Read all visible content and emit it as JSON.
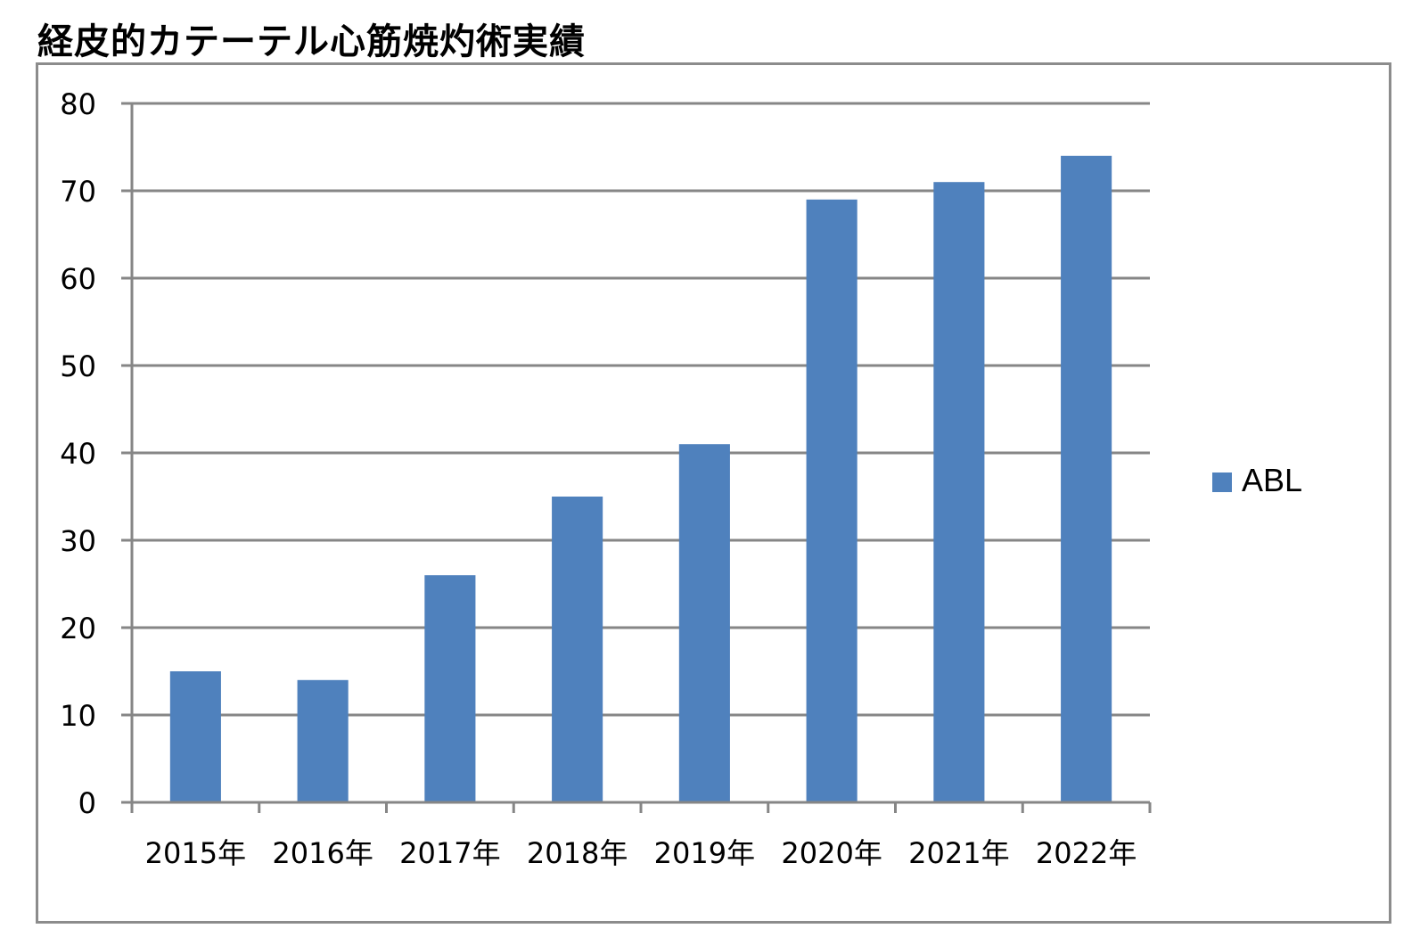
{
  "title": "経皮的カテーテル心筋焼灼術実績",
  "colors": {
    "bar": "#4f81bd",
    "grid": "#868686",
    "axis": "#868686",
    "frame": "#8c8c8c"
  },
  "chart_data": {
    "type": "bar",
    "title": "経皮的カテーテル心筋焼灼術実績",
    "categories": [
      "2015年",
      "2016年",
      "2017年",
      "2018年",
      "2019年",
      "2020年",
      "2021年",
      "2022年"
    ],
    "series": [
      {
        "name": "ABL",
        "values": [
          15,
          14,
          26,
          35,
          41,
          69,
          71,
          74
        ]
      }
    ],
    "xlabel": "",
    "ylabel": "",
    "ylim": [
      0,
      80
    ],
    "yticks": [
      0,
      10,
      20,
      30,
      40,
      50,
      60,
      70,
      80
    ],
    "grid": true,
    "legend_position": "right"
  }
}
